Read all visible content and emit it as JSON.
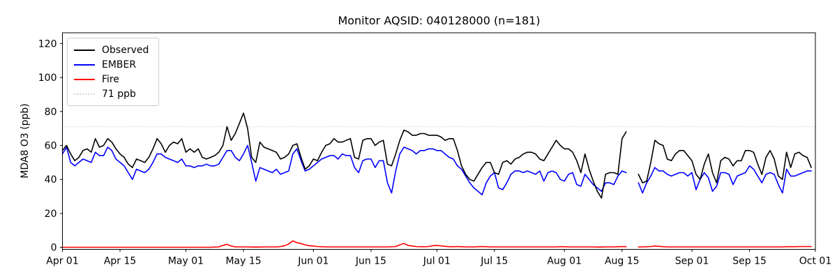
{
  "title": "Monitor AQSID: 040128000 (n=181)",
  "ylabel": "MDA8 O3 (ppb)",
  "legend": [
    {
      "label": "Observed",
      "color": "#000000",
      "dotted": false
    },
    {
      "label": "EMBER",
      "color": "#0000ff",
      "dotted": false
    },
    {
      "label": "Fire",
      "color": "#ff0000",
      "dotted": false
    },
    {
      "label": "71 ppb",
      "color": "#d3d3d3",
      "dotted": true
    }
  ],
  "chart_data": {
    "type": "line",
    "title": "Monitor AQSID: 040128000 (n=181)",
    "xlabel": "",
    "ylabel": "MDA8 O3 (ppb)",
    "grid": false,
    "legend_position": "upper left",
    "n_days": 183,
    "x_start": "Apr 01",
    "x_end": "Oct 01",
    "missing_days": [
      "Aug 17",
      "Aug 18"
    ],
    "n_points": 181,
    "threshold": {
      "value": 71,
      "label": "71 ppb",
      "color": "#d3d3d3",
      "style": "dotted"
    },
    "ylim": [
      -1.15,
      126.3
    ],
    "y_ticks": [
      0,
      20,
      40,
      60,
      80,
      100,
      120
    ],
    "x_ticks": [
      {
        "label": "Apr 01",
        "day": 0
      },
      {
        "label": "Apr 15",
        "day": 14
      },
      {
        "label": "May 01",
        "day": 30
      },
      {
        "label": "May 15",
        "day": 44
      },
      {
        "label": "Jun 01",
        "day": 61
      },
      {
        "label": "Jun 15",
        "day": 75
      },
      {
        "label": "Jul 01",
        "day": 91
      },
      {
        "label": "Jul 15",
        "day": 105
      },
      {
        "label": "Aug 01",
        "day": 122
      },
      {
        "label": "Aug 15",
        "day": 136
      },
      {
        "label": "Sep 01",
        "day": 153
      },
      {
        "label": "Sep 15",
        "day": 167
      },
      {
        "label": "Oct 01",
        "day": 183
      }
    ],
    "series": [
      {
        "name": "Observed",
        "color": "#000000",
        "values": [
          57,
          60,
          55,
          51,
          53,
          57,
          58,
          56,
          64,
          59,
          60,
          64,
          62,
          58,
          55,
          53,
          49,
          47,
          52,
          51,
          50,
          53,
          58,
          64,
          61,
          56,
          60,
          62,
          61,
          64,
          56,
          58,
          56,
          58,
          53,
          52,
          53,
          54,
          56,
          60,
          71,
          63,
          67,
          73,
          79,
          70,
          53,
          50,
          62,
          59,
          58,
          57,
          56,
          52,
          53,
          55,
          60,
          61,
          53,
          46,
          48,
          52,
          51,
          56,
          60,
          61,
          64,
          62,
          62,
          63,
          64,
          53,
          52,
          63,
          64,
          64,
          60,
          62,
          63,
          49,
          48,
          55,
          63,
          69,
          68,
          66,
          66,
          67,
          67,
          66,
          66,
          66,
          65,
          63,
          64,
          64,
          57,
          48,
          43,
          40,
          39,
          43,
          47,
          50,
          50,
          44,
          43,
          50,
          51,
          49,
          52,
          53,
          55,
          56,
          56,
          55,
          52,
          51,
          55,
          59,
          63,
          60,
          58,
          58,
          56,
          51,
          44,
          55,
          46,
          39,
          33,
          29,
          43,
          44,
          44,
          43,
          64,
          68,
          null,
          null,
          43,
          38,
          39,
          50,
          63,
          61,
          60,
          52,
          51,
          55,
          57,
          57,
          54,
          51,
          43,
          40,
          49,
          55,
          44,
          38,
          51,
          53,
          52,
          48,
          51,
          51,
          57,
          57,
          56,
          49,
          43,
          53,
          57,
          52,
          42,
          40,
          56,
          47,
          55,
          56,
          54,
          53,
          47
        ]
      },
      {
        "name": "EMBER",
        "color": "#0000ff",
        "values": [
          55,
          59,
          50,
          48,
          50,
          52,
          51,
          50,
          56,
          54,
          54,
          59,
          57,
          52,
          50,
          48,
          44,
          40,
          46,
          45,
          44,
          46,
          50,
          55,
          55,
          53,
          52,
          51,
          50,
          52,
          48,
          48,
          47,
          48,
          48,
          49,
          48,
          48,
          49,
          53,
          57,
          57,
          53,
          51,
          55,
          60,
          50,
          39,
          47,
          46,
          45,
          44,
          46,
          43,
          44,
          45,
          55,
          58,
          51,
          45,
          46,
          48,
          50,
          52,
          53,
          54,
          54,
          52,
          55,
          54,
          54,
          47,
          44,
          51,
          52,
          52,
          47,
          51,
          51,
          38,
          32,
          45,
          55,
          59,
          58,
          57,
          55,
          57,
          57,
          58,
          58,
          57,
          57,
          55,
          53,
          52,
          48,
          46,
          42,
          38,
          35,
          33,
          31,
          38,
          42,
          44,
          35,
          34,
          38,
          43,
          45,
          45,
          44,
          45,
          44,
          43,
          45,
          39,
          44,
          45,
          44,
          40,
          39,
          43,
          44,
          37,
          36,
          43,
          40,
          37,
          35,
          33,
          38,
          38,
          37,
          42,
          45,
          44,
          null,
          null,
          38,
          32,
          38,
          42,
          47,
          45,
          45,
          43,
          42,
          43,
          44,
          44,
          42,
          44,
          34,
          40,
          44,
          41,
          33,
          36,
          44,
          44,
          43,
          37,
          42,
          43,
          44,
          48,
          46,
          42,
          38,
          43,
          44,
          43,
          37,
          32,
          46,
          42,
          42,
          43,
          44,
          45,
          45
        ]
      },
      {
        "name": "Fire",
        "color": "#ff0000",
        "values": [
          0.1,
          0.1,
          0.1,
          0.1,
          0.1,
          0.1,
          0.1,
          0.1,
          0.1,
          0.1,
          0.1,
          0.1,
          0.1,
          0.1,
          0.1,
          0.1,
          0.1,
          0.1,
          0.1,
          0.1,
          0.1,
          0.1,
          0.1,
          0.1,
          0.1,
          0.1,
          0.1,
          0.1,
          0.1,
          0.1,
          0.1,
          0.1,
          0.1,
          0.1,
          0.1,
          0.1,
          0.1,
          0.2,
          0.3,
          1.2,
          1.8,
          0.8,
          0.3,
          0.3,
          0.3,
          0.3,
          0.2,
          0.2,
          0.2,
          0.3,
          0.3,
          0.3,
          0.3,
          0.5,
          1.0,
          2.0,
          3.8,
          2.8,
          2.2,
          1.5,
          1.0,
          0.8,
          0.5,
          0.4,
          0.3,
          0.3,
          0.3,
          0.3,
          0.3,
          0.3,
          0.3,
          0.3,
          0.3,
          0.3,
          0.3,
          0.3,
          0.3,
          0.3,
          0.3,
          0.3,
          0.4,
          0.5,
          1.5,
          2.3,
          1.2,
          0.8,
          0.5,
          0.4,
          0.4,
          0.5,
          1.0,
          1.2,
          0.9,
          0.6,
          0.4,
          0.4,
          0.5,
          0.4,
          0.3,
          0.3,
          0.3,
          0.4,
          0.5,
          0.4,
          0.3,
          0.3,
          0.3,
          0.3,
          0.3,
          0.3,
          0.3,
          0.3,
          0.3,
          0.3,
          0.3,
          0.3,
          0.3,
          0.3,
          0.3,
          0.3,
          0.3,
          0.4,
          0.4,
          0.3,
          0.3,
          0.3,
          0.3,
          0.3,
          0.3,
          0.3,
          0.2,
          0.2,
          0.3,
          0.3,
          0.3,
          0.4,
          0.5,
          0.4,
          null,
          null,
          0.3,
          0.3,
          0.4,
          0.5,
          0.8,
          0.6,
          0.4,
          0.3,
          0.3,
          0.3,
          0.3,
          0.3,
          0.3,
          0.3,
          0.3,
          0.3,
          0.3,
          0.3,
          0.3,
          0.3,
          0.3,
          0.3,
          0.3,
          0.3,
          0.3,
          0.3,
          0.3,
          0.3,
          0.3,
          0.3,
          0.3,
          0.3,
          0.3,
          0.3,
          0.3,
          0.3,
          0.4,
          0.4,
          0.4,
          0.5,
          0.5,
          0.5,
          0.5
        ]
      }
    ]
  }
}
